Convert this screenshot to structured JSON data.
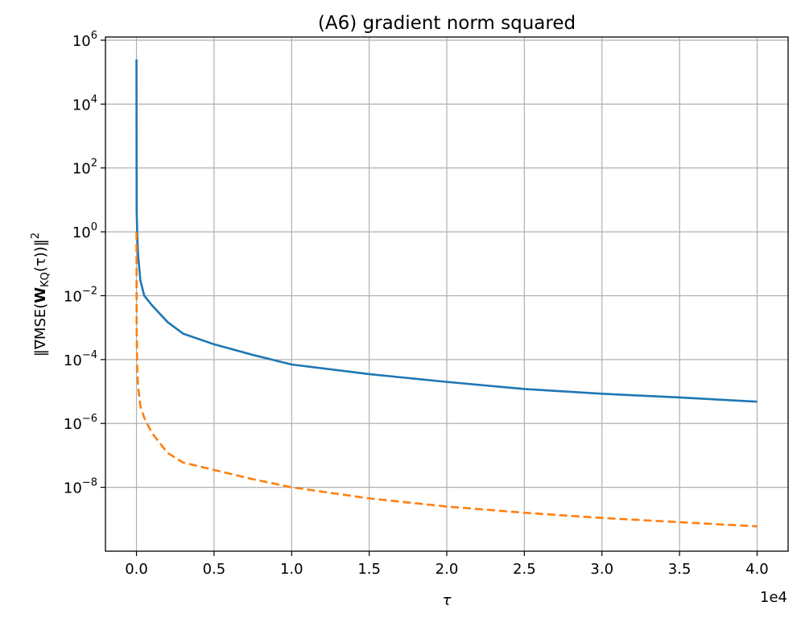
{
  "chart_data": {
    "type": "line",
    "title": "(A6) gradient norm squared",
    "xlabel": "τ",
    "ylabel": "‖∇MSE(W_KQ(τ))‖²",
    "ylabel_parts": {
      "pre": "‖∇MSE(",
      "bold": "W",
      "sub": "KQ",
      "post": "(τ))‖",
      "sup": "2"
    },
    "x_offset_text": "1e4",
    "xlim": [
      -2000,
      42000
    ],
    "ylim_log10": [
      -10.0,
      6.1
    ],
    "yscale": "log",
    "grid": true,
    "legend": "none",
    "x_ticks": [
      {
        "value": 0,
        "label": "0.0"
      },
      {
        "value": 5000,
        "label": "0.5"
      },
      {
        "value": 10000,
        "label": "1.0"
      },
      {
        "value": 15000,
        "label": "1.5"
      },
      {
        "value": 20000,
        "label": "2.0"
      },
      {
        "value": 25000,
        "label": "2.5"
      },
      {
        "value": 30000,
        "label": "3.0"
      },
      {
        "value": 35000,
        "label": "3.5"
      },
      {
        "value": 40000,
        "label": "4.0"
      }
    ],
    "y_ticks": [
      {
        "exp": -8,
        "base": "10",
        "power": "−8"
      },
      {
        "exp": -6,
        "base": "10",
        "power": "−6"
      },
      {
        "exp": -4,
        "base": "10",
        "power": "−4"
      },
      {
        "exp": -2,
        "base": "10",
        "power": "−2"
      },
      {
        "exp": 0,
        "base": "10",
        "power": "0"
      },
      {
        "exp": 2,
        "base": "10",
        "power": "2"
      },
      {
        "exp": 4,
        "base": "10",
        "power": "4"
      },
      {
        "exp": 6,
        "base": "10",
        "power": "6"
      }
    ],
    "series": [
      {
        "color": "#1f77b4",
        "dash": "none",
        "x": [
          0,
          1,
          10,
          50,
          100,
          250,
          500,
          1000,
          2000,
          3000,
          5000,
          7500,
          10000,
          15000,
          20000,
          25000,
          30000,
          35000,
          40000
        ],
        "y": [
          250000,
          200000,
          5,
          0.8,
          0.2,
          0.03,
          0.01,
          0.005,
          0.0015,
          0.00065,
          0.0003,
          0.00014,
          7e-05,
          3.5e-05,
          2e-05,
          1.2e-05,
          8.5e-06,
          6.5e-06,
          4.8e-06
        ]
      },
      {
        "color": "#ff7f0e",
        "dash": "10,5",
        "x": [
          0,
          1,
          10,
          50,
          100,
          250,
          500,
          1000,
          2000,
          3000,
          5000,
          7500,
          10000,
          15000,
          20000,
          25000,
          30000,
          35000,
          40000
        ],
        "y": [
          1.0,
          0.9,
          0.001,
          5e-05,
          1.5e-05,
          3.5e-06,
          1.5e-06,
          5e-07,
          1.2e-07,
          6e-08,
          3.5e-08,
          1.8e-08,
          1e-08,
          4.5e-09,
          2.5e-09,
          1.6e-09,
          1.1e-09,
          8.1e-10,
          6e-10
        ]
      }
    ]
  }
}
